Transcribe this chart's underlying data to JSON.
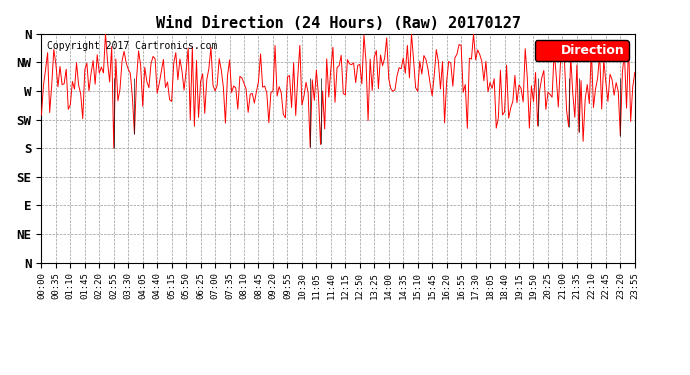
{
  "title": "Wind Direction (24 Hours) (Raw) 20170127",
  "copyright_text": "Copyright 2017 Cartronics.com",
  "legend_label": "Direction",
  "legend_bg": "#ff0000",
  "legend_fg": "#ffffff",
  "background_color": "#ffffff",
  "plot_bg_color": "#ffffff",
  "line_color": "#ff0000",
  "dark_line_color": "#111111",
  "grid_color": "#999999",
  "grid_style": "--",
  "ytick_labels": [
    "N",
    "NW",
    "W",
    "SW",
    "S",
    "SE",
    "E",
    "NE",
    "N"
  ],
  "ytick_values": [
    360,
    315,
    270,
    225,
    180,
    135,
    90,
    45,
    0
  ],
  "ylim": [
    0,
    360
  ],
  "title_fontsize": 11,
  "label_fontsize": 9,
  "tick_fontsize": 6.5,
  "copyright_fontsize": 7,
  "seed": 42,
  "n_points": 288,
  "base_direction": 292,
  "noise_std": 30,
  "x_tick_step": 7
}
